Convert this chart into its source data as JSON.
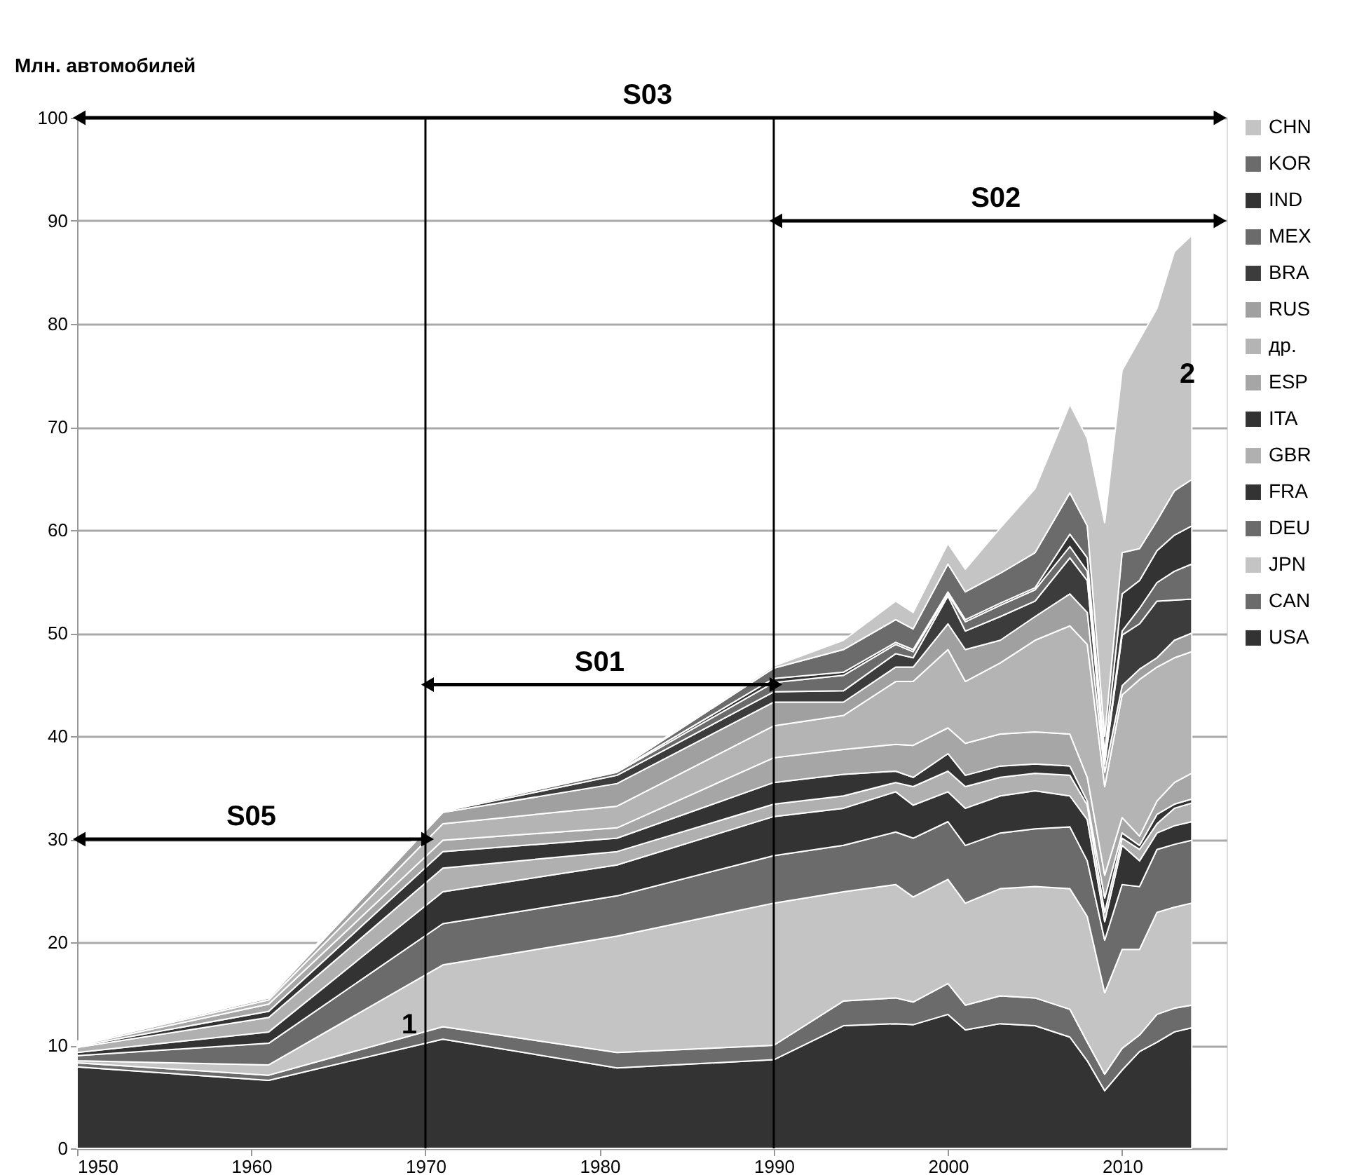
{
  "chart_data": {
    "type": "area",
    "stacked": true,
    "ylabel": "Млн. автомобилей",
    "x": [
      1950,
      1961,
      1971,
      1981,
      1990,
      1994,
      1997,
      1998,
      2000,
      2001,
      2003,
      2005,
      2007,
      2008,
      2009,
      2010,
      2011,
      2012,
      2013,
      2014
    ],
    "xlim": [
      1950,
      2016
    ],
    "xticks": [
      1950,
      1960,
      1970,
      1980,
      1990,
      2000,
      2010
    ],
    "ylim": [
      0,
      100
    ],
    "yticks": [
      0,
      10,
      20,
      30,
      40,
      50,
      60,
      70,
      80,
      90,
      100
    ],
    "grid": "y",
    "legend": "right",
    "series": [
      {
        "name": "USA",
        "color": "#333333",
        "values": [
          7.9,
          6.6,
          10.6,
          7.8,
          8.6,
          11.9,
          12.1,
          12.0,
          13.0,
          11.5,
          12.1,
          11.9,
          10.8,
          8.5,
          5.6,
          7.6,
          9.4,
          10.3,
          11.3,
          11.7
        ]
      },
      {
        "name": "CAN",
        "color": "#6b6b6b",
        "values": [
          0.4,
          0.5,
          1.2,
          1.5,
          1.4,
          2.4,
          2.5,
          2.2,
          3.0,
          2.4,
          2.7,
          2.7,
          2.7,
          1.8,
          1.6,
          2.1,
          1.6,
          2.7,
          2.3,
          2.2
        ]
      },
      {
        "name": "JPN",
        "color": "#c4c4c4",
        "values": [
          0.2,
          1.0,
          6.0,
          11.3,
          13.8,
          10.6,
          11.0,
          10.2,
          10.1,
          9.9,
          10.4,
          10.8,
          11.7,
          12.2,
          7.9,
          9.6,
          8.3,
          9.9,
          9.8,
          9.9
        ]
      },
      {
        "name": "DEU",
        "color": "#6b6b6b",
        "values": [
          0.5,
          2.1,
          4.0,
          3.9,
          4.6,
          4.5,
          5.1,
          5.7,
          5.6,
          5.6,
          5.4,
          5.6,
          6.0,
          5.4,
          5.1,
          6.3,
          6.1,
          6.1,
          6.1,
          6.1
        ]
      },
      {
        "name": "FRA",
        "color": "#333333",
        "values": [
          0.3,
          1.1,
          3.1,
          3.0,
          3.8,
          3.6,
          3.9,
          3.2,
          2.9,
          3.6,
          3.6,
          3.7,
          3.0,
          4.0,
          1.8,
          3.8,
          2.5,
          1.6,
          1.8,
          1.8
        ]
      },
      {
        "name": "GBR",
        "color": "#b0b0b0",
        "values": [
          0.5,
          1.4,
          2.3,
          1.3,
          1.2,
          1.2,
          0.9,
          1.8,
          2.0,
          2.1,
          1.8,
          1.7,
          2.0,
          1.4,
          0.9,
          0.7,
          1.1,
          0.9,
          1.7,
          1.8
        ]
      },
      {
        "name": "ITA",
        "color": "#333333",
        "values": [
          0.1,
          0.6,
          1.6,
          1.3,
          2.1,
          2.1,
          1.1,
          0.9,
          1.7,
          1.1,
          1.1,
          0.9,
          0.9,
          0.4,
          1.4,
          0.5,
          0.4,
          0.9,
          0.4,
          0.4
        ]
      },
      {
        "name": "ESP",
        "color": "#a6a6a6",
        "values": [
          0.1,
          0.7,
          1.1,
          1.0,
          2.4,
          2.4,
          2.6,
          3.1,
          2.5,
          3.1,
          3.1,
          3.1,
          3.1,
          2.3,
          2.2,
          1.5,
          0.9,
          1.3,
          2.1,
          2.5
        ]
      },
      {
        "name": "др.",
        "color": "#b4b4b4",
        "values": [
          0.1,
          0.4,
          1.6,
          2.1,
          3.1,
          3.3,
          6.1,
          6.2,
          7.6,
          6.0,
          6.9,
          8.9,
          10.5,
          12.9,
          8.6,
          11.9,
          15.2,
          13.0,
          12.1,
          11.8
        ]
      },
      {
        "name": "RUS",
        "color": "#a0a0a0",
        "values": [
          0.1,
          0.2,
          1.1,
          2.2,
          2.3,
          1.3,
          1.4,
          1.4,
          2.5,
          3.1,
          2.2,
          2.3,
          3.1,
          3.1,
          1.4,
          0.9,
          1.0,
          0.9,
          1.7,
          1.8
        ]
      },
      {
        "name": "BRA",
        "color": "#3c3c3c",
        "values": [
          0.0,
          0.0,
          0.1,
          0.8,
          1.0,
          1.1,
          1.3,
          0.9,
          2.7,
          1.8,
          2.3,
          1.5,
          3.5,
          3.1,
          0.8,
          4.9,
          4.4,
          5.5,
          3.9,
          3.3
        ]
      },
      {
        "name": "MEX",
        "color": "#6b6b6b",
        "values": [
          0.1,
          0.1,
          0.1,
          0.3,
          0.9,
          1.5,
          0.9,
          0.6,
          0.2,
          0.9,
          1.1,
          1.1,
          1.1,
          0.9,
          0.6,
          0.4,
          1.5,
          1.8,
          2.8,
          3.4
        ]
      },
      {
        "name": "IND",
        "color": "#333333",
        "values": [
          0.0,
          0.0,
          0.0,
          0.1,
          0.4,
          0.3,
          0.2,
          0.2,
          0.2,
          0.2,
          0.2,
          0.2,
          1.2,
          1.3,
          0.5,
          3.6,
          2.7,
          3.1,
          3.5,
          3.7
        ]
      },
      {
        "name": "KOR",
        "color": "#6b6b6b",
        "values": [
          0.0,
          0.0,
          0.1,
          0.1,
          1.0,
          2.2,
          2.2,
          2.0,
          2.7,
          2.7,
          2.9,
          3.4,
          4.0,
          3.1,
          1.6,
          4.0,
          3.1,
          2.9,
          4.3,
          4.5
        ]
      },
      {
        "name": "CHN",
        "color": "#c4c4c4",
        "values": [
          0.1,
          0.1,
          0.1,
          0.1,
          0.2,
          0.9,
          1.8,
          1.6,
          2.0,
          2.2,
          4.4,
          6.2,
          8.6,
          8.5,
          20.7,
          17.7,
          20.3,
          20.6,
          23.2,
          23.7
        ]
      },
      {
        "name": "S03",
        "type": "line",
        "color": "#000000",
        "marker": "triangle",
        "x": [
          1950,
          2015.5
        ],
        "values": [
          100,
          100
        ]
      },
      {
        "name": "S02",
        "type": "line",
        "color": "#000000",
        "marker": "triangle",
        "x": [
          1990,
          2015.5
        ],
        "values": [
          90,
          90
        ]
      },
      {
        "name": "S01",
        "type": "line",
        "color": "#000000",
        "marker": "triangle",
        "x": [
          1970,
          1990
        ],
        "values": [
          45,
          45
        ]
      },
      {
        "name": "S05",
        "type": "line",
        "color": "#000000",
        "marker": "triangle",
        "x": [
          1950,
          1970
        ],
        "values": [
          30,
          30
        ]
      }
    ],
    "ref_lines": [
      {
        "axis": "x",
        "value": 1970
      },
      {
        "axis": "x",
        "value": 1990
      }
    ],
    "annotations": [
      {
        "text": "1",
        "x": 1970,
        "y": 12
      },
      "2"
    ]
  }
}
